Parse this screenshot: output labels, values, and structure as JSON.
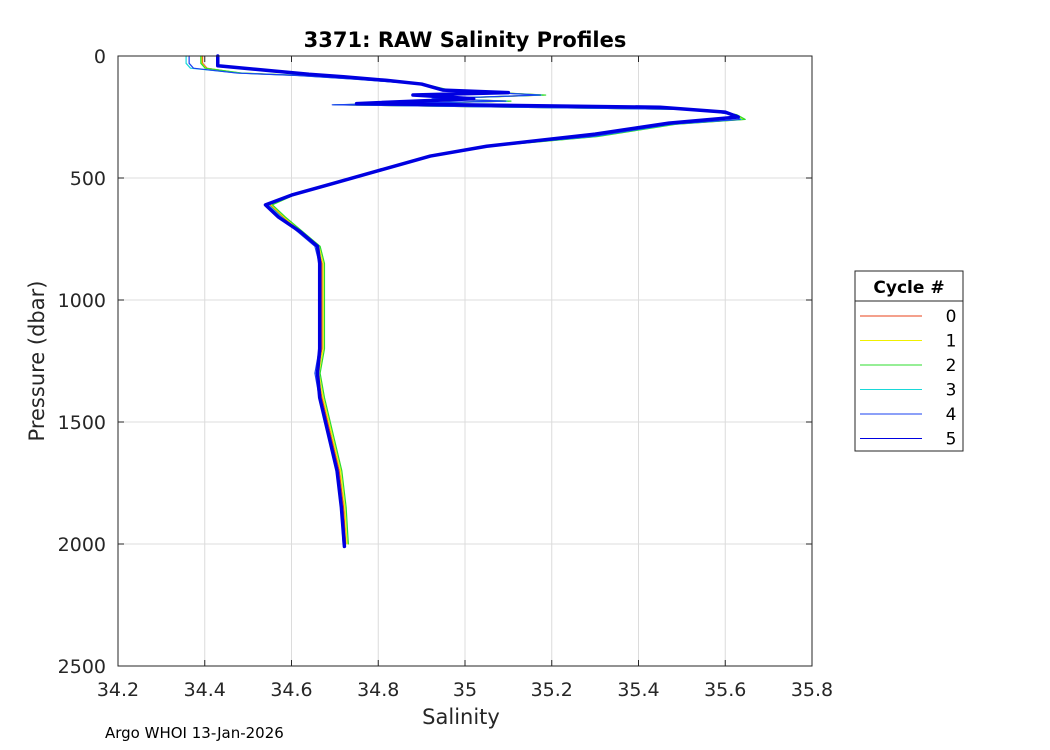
{
  "chart_data": {
    "type": "line",
    "title": "3371: RAW Salinity Profiles",
    "xlabel": "Salinity",
    "ylabel": "Pressure (dbar)",
    "xlim": [
      34.2,
      35.8
    ],
    "ylim": [
      0,
      2500
    ],
    "y_reversed": true,
    "grid": true,
    "x_ticks": [
      "34.2",
      "34.4",
      "34.6",
      "34.8",
      "35",
      "35.2",
      "35.4",
      "35.6",
      "35.8"
    ],
    "y_ticks": [
      "0",
      "500",
      "1000",
      "1500",
      "2000",
      "2500"
    ],
    "legend": {
      "title": "Cycle #",
      "placement": "right"
    },
    "series": [
      {
        "name": "0",
        "color": "#e8401a",
        "x_offset": 0.0,
        "top_shift": 0.015,
        "pts": [
          [
            34.38,
            0
          ],
          [
            34.38,
            30
          ],
          [
            34.39,
            50
          ],
          [
            34.48,
            70
          ],
          [
            34.62,
            80
          ],
          [
            34.75,
            95
          ],
          [
            34.9,
            115
          ],
          [
            34.96,
            140
          ],
          [
            35.18,
            160
          ],
          [
            34.93,
            175
          ],
          [
            35.1,
            185
          ],
          [
            34.7,
            200
          ],
          [
            35.55,
            220
          ],
          [
            35.62,
            240
          ],
          [
            35.64,
            260
          ],
          [
            35.48,
            280
          ],
          [
            35.3,
            330
          ],
          [
            35.05,
            370
          ],
          [
            34.92,
            410
          ],
          [
            34.8,
            470
          ],
          [
            34.7,
            520
          ],
          [
            34.6,
            570
          ],
          [
            34.55,
            610
          ],
          [
            34.58,
            660
          ],
          [
            34.62,
            720
          ],
          [
            34.66,
            780
          ],
          [
            34.67,
            850
          ],
          [
            34.67,
            1000
          ],
          [
            34.67,
            1200
          ],
          [
            34.66,
            1300
          ],
          [
            34.67,
            1400
          ],
          [
            34.69,
            1550
          ],
          [
            34.71,
            1700
          ],
          [
            34.72,
            1850
          ],
          [
            34.725,
            2000
          ]
        ]
      },
      {
        "name": "1",
        "color": "#f0f000",
        "x_offset": 0.003,
        "top_shift": 0.01,
        "pts": [
          [
            34.38,
            0
          ],
          [
            34.38,
            30
          ],
          [
            34.39,
            50
          ],
          [
            34.48,
            70
          ],
          [
            34.62,
            80
          ],
          [
            34.75,
            95
          ],
          [
            34.9,
            115
          ],
          [
            34.96,
            140
          ],
          [
            35.18,
            160
          ],
          [
            34.93,
            175
          ],
          [
            35.1,
            185
          ],
          [
            34.7,
            200
          ],
          [
            35.55,
            220
          ],
          [
            35.62,
            240
          ],
          [
            35.64,
            260
          ],
          [
            35.48,
            280
          ],
          [
            35.3,
            330
          ],
          [
            35.05,
            370
          ],
          [
            34.92,
            410
          ],
          [
            34.8,
            470
          ],
          [
            34.7,
            520
          ],
          [
            34.6,
            570
          ],
          [
            34.55,
            610
          ],
          [
            34.58,
            660
          ],
          [
            34.62,
            720
          ],
          [
            34.66,
            780
          ],
          [
            34.67,
            850
          ],
          [
            34.67,
            1000
          ],
          [
            34.67,
            1200
          ],
          [
            34.66,
            1300
          ],
          [
            34.67,
            1400
          ],
          [
            34.69,
            1550
          ],
          [
            34.71,
            1700
          ],
          [
            34.72,
            1850
          ],
          [
            34.725,
            2000
          ]
        ]
      },
      {
        "name": "2",
        "color": "#2ddc2d",
        "x_offset": 0.006,
        "top_shift": 0.005,
        "pts": [
          [
            34.38,
            0
          ],
          [
            34.38,
            30
          ],
          [
            34.39,
            50
          ],
          [
            34.48,
            70
          ],
          [
            34.62,
            80
          ],
          [
            34.75,
            95
          ],
          [
            34.9,
            115
          ],
          [
            34.96,
            140
          ],
          [
            35.18,
            160
          ],
          [
            34.93,
            175
          ],
          [
            35.1,
            185
          ],
          [
            34.7,
            200
          ],
          [
            35.55,
            220
          ],
          [
            35.62,
            240
          ],
          [
            35.64,
            260
          ],
          [
            35.48,
            280
          ],
          [
            35.3,
            330
          ],
          [
            35.05,
            370
          ],
          [
            34.92,
            410
          ],
          [
            34.8,
            470
          ],
          [
            34.7,
            520
          ],
          [
            34.6,
            570
          ],
          [
            34.55,
            610
          ],
          [
            34.58,
            660
          ],
          [
            34.62,
            720
          ],
          [
            34.66,
            780
          ],
          [
            34.67,
            850
          ],
          [
            34.67,
            1000
          ],
          [
            34.67,
            1200
          ],
          [
            34.66,
            1300
          ],
          [
            34.67,
            1400
          ],
          [
            34.69,
            1550
          ],
          [
            34.71,
            1700
          ],
          [
            34.72,
            1850
          ],
          [
            34.725,
            2000
          ]
        ]
      },
      {
        "name": "3",
        "color": "#18d8d8",
        "x_offset": -0.003,
        "top_shift": -0.02,
        "pts": [
          [
            34.38,
            0
          ],
          [
            34.38,
            30
          ],
          [
            34.39,
            50
          ],
          [
            34.48,
            70
          ],
          [
            34.62,
            80
          ],
          [
            34.75,
            95
          ],
          [
            34.9,
            115
          ],
          [
            34.96,
            140
          ],
          [
            35.18,
            160
          ],
          [
            34.93,
            175
          ],
          [
            35.1,
            185
          ],
          [
            34.7,
            200
          ],
          [
            35.55,
            220
          ],
          [
            35.62,
            240
          ],
          [
            35.64,
            260
          ],
          [
            35.48,
            280
          ],
          [
            35.3,
            330
          ],
          [
            35.05,
            370
          ],
          [
            34.92,
            410
          ],
          [
            34.8,
            470
          ],
          [
            34.7,
            520
          ],
          [
            34.6,
            570
          ],
          [
            34.55,
            610
          ],
          [
            34.58,
            660
          ],
          [
            34.62,
            720
          ],
          [
            34.66,
            780
          ],
          [
            34.67,
            850
          ],
          [
            34.67,
            1000
          ],
          [
            34.67,
            1200
          ],
          [
            34.66,
            1300
          ],
          [
            34.67,
            1400
          ],
          [
            34.69,
            1550
          ],
          [
            34.71,
            1700
          ],
          [
            34.72,
            1850
          ],
          [
            34.725,
            2000
          ]
        ]
      },
      {
        "name": "4",
        "color": "#1a40f0",
        "x_offset": -0.006,
        "top_shift": -0.01,
        "pts": [
          [
            34.38,
            0
          ],
          [
            34.38,
            30
          ],
          [
            34.39,
            50
          ],
          [
            34.48,
            70
          ],
          [
            34.62,
            80
          ],
          [
            34.75,
            95
          ],
          [
            34.9,
            115
          ],
          [
            34.96,
            140
          ],
          [
            35.18,
            160
          ],
          [
            34.93,
            175
          ],
          [
            35.1,
            185
          ],
          [
            34.7,
            200
          ],
          [
            35.55,
            220
          ],
          [
            35.62,
            240
          ],
          [
            35.64,
            260
          ],
          [
            35.48,
            280
          ],
          [
            35.3,
            330
          ],
          [
            35.05,
            370
          ],
          [
            34.92,
            410
          ],
          [
            34.8,
            470
          ],
          [
            34.7,
            520
          ],
          [
            34.6,
            570
          ],
          [
            34.55,
            610
          ],
          [
            34.58,
            660
          ],
          [
            34.62,
            720
          ],
          [
            34.66,
            780
          ],
          [
            34.67,
            850
          ],
          [
            34.67,
            1000
          ],
          [
            34.67,
            1200
          ],
          [
            34.66,
            1300
          ],
          [
            34.67,
            1400
          ],
          [
            34.69,
            1550
          ],
          [
            34.71,
            1700
          ],
          [
            34.72,
            1850
          ],
          [
            34.725,
            2000
          ]
        ]
      },
      {
        "name": "5",
        "color": "#0000e0",
        "x_offset": 0.0,
        "top_shift": 0.0,
        "thick": true,
        "pts": [
          [
            34.43,
            0
          ],
          [
            34.43,
            40
          ],
          [
            34.55,
            60
          ],
          [
            34.64,
            75
          ],
          [
            34.72,
            85
          ],
          [
            34.82,
            100
          ],
          [
            34.9,
            115
          ],
          [
            34.95,
            140
          ],
          [
            35.1,
            150
          ],
          [
            34.88,
            160
          ],
          [
            35.02,
            175
          ],
          [
            34.75,
            195
          ],
          [
            35.45,
            210
          ],
          [
            35.6,
            230
          ],
          [
            35.63,
            250
          ],
          [
            35.47,
            275
          ],
          [
            35.3,
            320
          ],
          [
            35.05,
            370
          ],
          [
            34.92,
            410
          ],
          [
            34.8,
            470
          ],
          [
            34.7,
            520
          ],
          [
            34.6,
            570
          ],
          [
            34.54,
            610
          ],
          [
            34.57,
            660
          ],
          [
            34.62,
            720
          ],
          [
            34.66,
            780
          ],
          [
            34.665,
            850
          ],
          [
            34.665,
            1000
          ],
          [
            34.665,
            1200
          ],
          [
            34.66,
            1300
          ],
          [
            34.665,
            1400
          ],
          [
            34.685,
            1550
          ],
          [
            34.705,
            1700
          ],
          [
            34.715,
            1850
          ],
          [
            34.722,
            2010
          ]
        ]
      }
    ]
  },
  "footer": "Argo WHOI 13-Jan-2026"
}
